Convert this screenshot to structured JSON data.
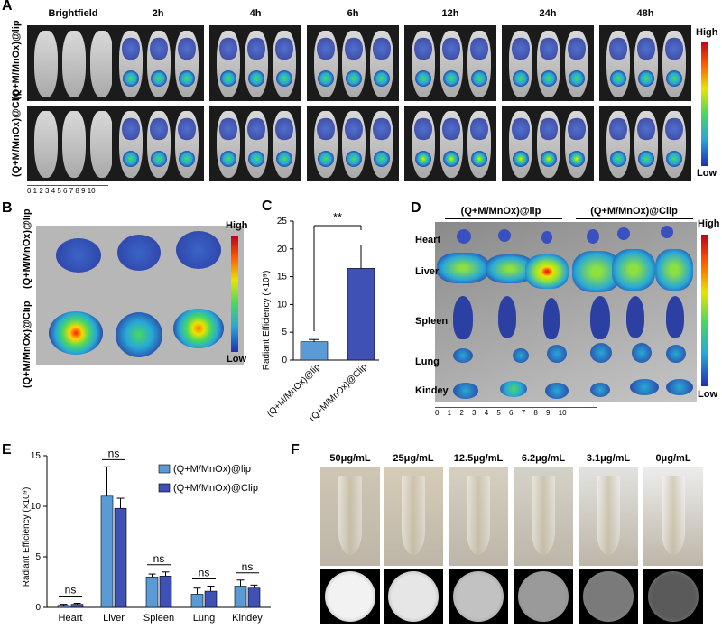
{
  "panels": {
    "A": "A",
    "B": "B",
    "C": "C",
    "D": "D",
    "E": "E",
    "F": "F"
  },
  "panelA": {
    "timepoints": [
      "Brightfield",
      "2h",
      "4h",
      "6h",
      "12h",
      "24h",
      "48h"
    ],
    "rows": [
      "(Q+M/MnOx)@lip",
      "(Q+M/MnOx)@Clip"
    ],
    "ruler": "0 1 2 3 4 5 6 7 8 9 10",
    "scale_high": "High",
    "scale_low": "Low"
  },
  "panelB": {
    "rows": [
      "(Q+M/MnOx)@lip",
      "(Q+M/MnOx)@Clip"
    ],
    "scale_high": "High",
    "scale_low": "Low"
  },
  "panelC": {
    "ylabel": "Radiant Efficiency (×10⁹)",
    "significance": "**",
    "yticks": [
      "0",
      "5",
      "10",
      "15",
      "20",
      "25"
    ]
  },
  "panelD": {
    "groups": [
      "(Q+M/MnOx)@lip",
      "(Q+M/MnOx)@Clip"
    ],
    "organs": [
      "Heart",
      "Liver",
      "Spleen",
      "Lung",
      "Kindey"
    ],
    "ruler": "0 1 2 3 4 5 6 7 8 9 10",
    "scale_high": "High",
    "scale_low": "Low"
  },
  "panelE": {
    "ylabel": "Radiant Efficiency (×10⁹)",
    "yticks": [
      "0",
      "5",
      "10",
      "15"
    ],
    "significance": "ns"
  },
  "panelF": {
    "concentrations": [
      "50μg/mL",
      "25μg/mL",
      "12.5μg/mL",
      "6.2μg/mL",
      "3.1μg/mL",
      "0μg/mL"
    ]
  },
  "colors": {
    "lip": "#5b9bd5",
    "clip": "#3f51b5"
  },
  "chart_data": [
    {
      "type": "bar",
      "panel": "C",
      "categories": [
        "(Q+M/MnOx)@lip",
        "(Q+M/MnOx)@Clip"
      ],
      "values": [
        3.3,
        16.5
      ],
      "errors": [
        0.4,
        4.2
      ],
      "ylabel": "Radiant Efficiency (×10⁹)",
      "ylim": [
        0,
        25
      ]
    },
    {
      "type": "bar",
      "panel": "E",
      "categories": [
        "Heart",
        "Liver",
        "Spleen",
        "Lung",
        "Kindey"
      ],
      "series": [
        {
          "name": "(Q+M/MnOx)@lip",
          "values": [
            0.2,
            11.0,
            3.0,
            1.3,
            2.1
          ],
          "errors": [
            0.1,
            2.9,
            0.3,
            0.6,
            0.6
          ]
        },
        {
          "name": "(Q+M/MnOx)@Clip",
          "values": [
            0.3,
            9.8,
            3.1,
            1.6,
            1.9
          ],
          "errors": [
            0.1,
            1.0,
            0.4,
            0.5,
            0.3
          ]
        }
      ],
      "ylabel": "Radiant Efficiency (×10⁹)",
      "ylim": [
        0,
        15
      ],
      "legend": "top-right"
    }
  ]
}
